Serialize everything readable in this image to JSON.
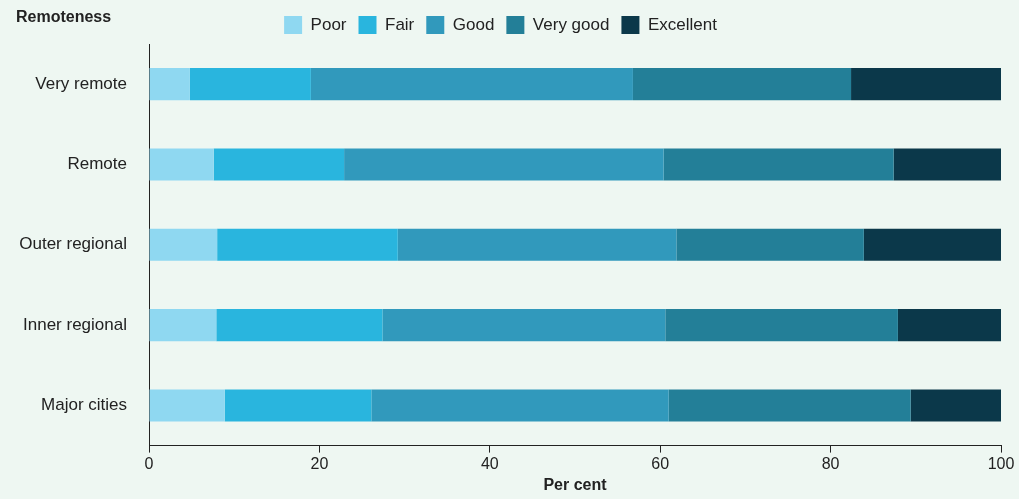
{
  "chart_data": {
    "type": "bar",
    "orientation": "horizontal",
    "stacked": true,
    "ylabel": "Remoteness",
    "xlabel": "Per cent",
    "categories": [
      "Very remote",
      "Remote",
      "Outer regional",
      "Inner regional",
      "Major cities"
    ],
    "series": [
      {
        "name": "Poor",
        "color": "#8fd8f1",
        "values": [
          4.8,
          7.6,
          8.0,
          7.9,
          8.9
        ]
      },
      {
        "name": "Fair",
        "color": "#29b5de",
        "values": [
          14.2,
          15.3,
          21.2,
          19.5,
          17.2
        ]
      },
      {
        "name": "Good",
        "color": "#3199bc",
        "values": [
          37.8,
          37.5,
          32.7,
          33.2,
          34.9
        ]
      },
      {
        "name": "Very good",
        "color": "#237f98",
        "values": [
          25.6,
          27.0,
          22.0,
          27.3,
          28.4
        ]
      },
      {
        "name": "Excellent",
        "color": "#0b384a",
        "values": [
          17.6,
          12.6,
          16.1,
          12.1,
          10.6
        ]
      }
    ],
    "xlim": [
      0,
      100
    ],
    "xticks": [
      0,
      20,
      40,
      60,
      80,
      100
    ],
    "grid": false,
    "legend": "top"
  }
}
